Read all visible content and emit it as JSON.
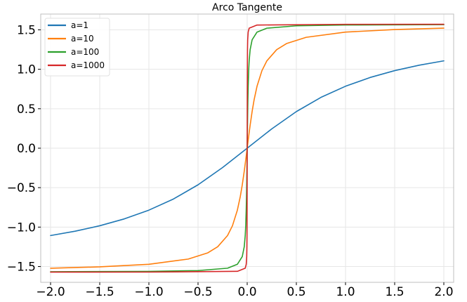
{
  "chart_data": {
    "type": "line",
    "title": "Arco Tangente",
    "xlabel": "",
    "ylabel": "",
    "xlim": [
      -2.1,
      2.1
    ],
    "ylim": [
      -1.7,
      1.7
    ],
    "grid": true,
    "legend_position": "top-left",
    "x_ticks": [
      -2.0,
      -1.5,
      -1.0,
      -0.5,
      0.0,
      0.5,
      1.0,
      1.5,
      2.0
    ],
    "x_tick_labels": [
      "−2.0",
      "−1.5",
      "−1.0",
      "−0.5",
      "0.0",
      "0.5",
      "1.0",
      "1.5",
      "2.0"
    ],
    "y_ticks": [
      -1.5,
      -1.0,
      -0.5,
      0.0,
      0.5,
      1.0,
      1.5
    ],
    "y_tick_labels": [
      "−1.5",
      "−1.0",
      "−0.5",
      "0.0",
      "0.5",
      "1.0",
      "1.5"
    ],
    "series": [
      {
        "name": "a=1",
        "color": "#1f77b4",
        "x": [
          -2.0,
          -1.75,
          -1.5,
          -1.25,
          -1.0,
          -0.75,
          -0.5,
          -0.25,
          0.0,
          0.25,
          0.5,
          0.75,
          1.0,
          1.25,
          1.5,
          1.75,
          2.0
        ],
        "y": [
          -1.107,
          -1.052,
          -0.983,
          -0.896,
          -0.785,
          -0.644,
          -0.464,
          -0.245,
          0.0,
          0.245,
          0.464,
          0.644,
          0.785,
          0.896,
          0.983,
          1.052,
          1.107
        ]
      },
      {
        "name": "a=10",
        "color": "#ff7f0e",
        "x": [
          -2.0,
          -1.5,
          -1.0,
          -0.6,
          -0.4,
          -0.3,
          -0.2,
          -0.15,
          -0.1,
          -0.07,
          -0.05,
          -0.03,
          -0.02,
          -0.01,
          0.0,
          0.01,
          0.02,
          0.03,
          0.05,
          0.07,
          0.1,
          0.15,
          0.2,
          0.3,
          0.4,
          0.6,
          1.0,
          1.5,
          2.0
        ],
        "y": [
          -1.521,
          -1.504,
          -1.471,
          -1.405,
          -1.326,
          -1.249,
          -1.107,
          -0.983,
          -0.785,
          -0.611,
          -0.464,
          -0.291,
          -0.197,
          -0.0997,
          0.0,
          0.0997,
          0.197,
          0.291,
          0.464,
          0.611,
          0.785,
          0.983,
          1.107,
          1.249,
          1.326,
          1.405,
          1.471,
          1.504,
          1.521
        ]
      },
      {
        "name": "a=100",
        "color": "#2ca02c",
        "x": [
          -2.0,
          -1.0,
          -0.5,
          -0.2,
          -0.1,
          -0.05,
          -0.03,
          -0.02,
          -0.015,
          -0.01,
          -0.007,
          -0.005,
          -0.003,
          -0.002,
          -0.001,
          0.0,
          0.001,
          0.002,
          0.003,
          0.005,
          0.007,
          0.01,
          0.015,
          0.02,
          0.03,
          0.05,
          0.1,
          0.2,
          0.5,
          1.0,
          2.0
        ],
        "y": [
          -1.566,
          -1.561,
          -1.551,
          -1.521,
          -1.471,
          -1.373,
          -1.249,
          -1.107,
          -0.983,
          -0.785,
          -0.611,
          -0.464,
          -0.291,
          -0.197,
          -0.0997,
          0.0,
          0.0997,
          0.197,
          0.291,
          0.464,
          0.611,
          0.785,
          0.983,
          1.107,
          1.249,
          1.373,
          1.471,
          1.521,
          1.551,
          1.561,
          1.566
        ]
      },
      {
        "name": "a=1000",
        "color": "#d62728",
        "x": [
          -2.0,
          -1.0,
          -0.1,
          -0.02,
          -0.01,
          -0.005,
          -0.003,
          -0.002,
          -0.001,
          -0.0005,
          0.0,
          0.0005,
          0.001,
          0.002,
          0.003,
          0.005,
          0.01,
          0.02,
          0.1,
          1.0,
          2.0
        ],
        "y": [
          -1.5703,
          -1.5698,
          -1.5608,
          -1.521,
          -1.471,
          -1.373,
          -1.249,
          -1.107,
          -0.785,
          -0.464,
          0.0,
          0.464,
          0.785,
          1.107,
          1.249,
          1.373,
          1.471,
          1.521,
          1.5608,
          1.5698,
          1.5703
        ]
      }
    ]
  }
}
